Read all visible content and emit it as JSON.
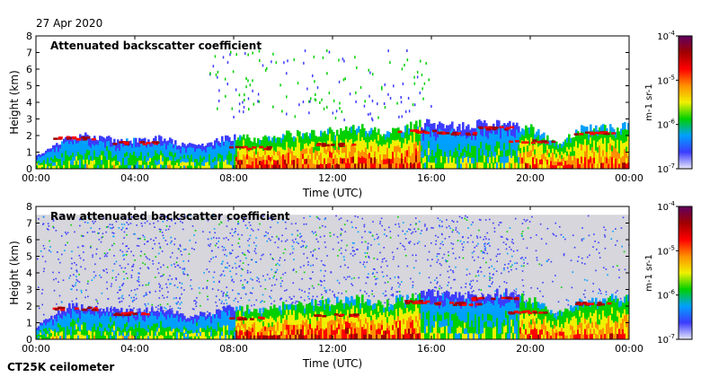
{
  "date": "27 Apr 2020",
  "instrument": "CT25K ceilometer",
  "colors": {
    "background_noise": "#d6d6dc",
    "colormap": [
      "#e8e8f8",
      "#3c3cff",
      "#00a0ff",
      "#00d000",
      "#f0f000",
      "#ff9000",
      "#ff0000",
      "#a00000",
      "#600060"
    ]
  },
  "chart_data": [
    {
      "type": "heatmap",
      "title": "Attenuated backscatter coefficient",
      "xlabel": "Time (UTC)",
      "ylabel": "Height (km)",
      "xlim": [
        0,
        24
      ],
      "ylim": [
        0,
        8
      ],
      "x_ticks": [
        "00:00",
        "04:00",
        "08:00",
        "12:00",
        "16:00",
        "20:00",
        "00:00"
      ],
      "y_ticks": [
        "0",
        "1",
        "2",
        "3",
        "4",
        "5",
        "6",
        "7",
        "8"
      ],
      "colorbar": {
        "label": "m-1 sr-1",
        "scale": "log",
        "range": [
          1e-07,
          0.0001
        ],
        "tick_base": "10",
        "tick_exponents": [
          "-7",
          "-6",
          "-5",
          "-4"
        ]
      },
      "layer_top_km": [
        [
          0,
          0.8
        ],
        [
          1.3,
          2.0
        ],
        [
          2,
          2.0
        ],
        [
          3,
          1.8
        ],
        [
          4,
          1.7
        ],
        [
          5,
          1.9
        ],
        [
          6,
          1.4
        ],
        [
          7,
          1.6
        ],
        [
          8,
          2.0
        ],
        [
          9,
          1.8
        ],
        [
          10,
          2.1
        ],
        [
          11,
          2.2
        ],
        [
          12,
          2.3
        ],
        [
          13,
          2.5
        ],
        [
          14,
          2.2
        ],
        [
          15,
          2.6
        ],
        [
          16,
          2.8
        ],
        [
          17,
          2.6
        ],
        [
          18,
          2.8
        ],
        [
          19,
          2.8
        ],
        [
          20,
          2.5
        ],
        [
          21,
          1.5
        ],
        [
          22,
          2.4
        ],
        [
          23,
          2.5
        ],
        [
          24,
          2.6
        ]
      ],
      "cloud_base_km": [
        [
          1.5,
          1.9
        ],
        [
          4,
          1.6
        ],
        [
          8.5,
          1.3
        ],
        [
          12,
          1.5
        ],
        [
          15.5,
          2.3
        ],
        [
          17,
          2.2
        ],
        [
          18.5,
          2.5
        ],
        [
          20,
          1.7
        ],
        [
          22.5,
          2.2
        ]
      ],
      "noise_ceiling_km": 0
    },
    {
      "type": "heatmap",
      "title": "Raw attenuated backscatter coefficient",
      "xlabel": "Time (UTC)",
      "ylabel": "Height (km)",
      "xlim": [
        0,
        24
      ],
      "ylim": [
        0,
        8
      ],
      "x_ticks": [
        "00:00",
        "04:00",
        "08:00",
        "12:00",
        "16:00",
        "20:00",
        "00:00"
      ],
      "y_ticks": [
        "0",
        "1",
        "2",
        "3",
        "4",
        "5",
        "6",
        "7",
        "8"
      ],
      "colorbar": {
        "label": "m-1 sr-1",
        "scale": "log",
        "range": [
          1e-07,
          0.0001
        ],
        "tick_base": "10",
        "tick_exponents": [
          "-7",
          "-6",
          "-5",
          "-4"
        ]
      },
      "layer_top_km": [
        [
          0,
          0.8
        ],
        [
          1.3,
          2.0
        ],
        [
          2,
          2.0
        ],
        [
          3,
          1.8
        ],
        [
          4,
          1.7
        ],
        [
          5,
          1.9
        ],
        [
          6,
          1.4
        ],
        [
          7,
          1.6
        ],
        [
          8,
          2.0
        ],
        [
          9,
          1.8
        ],
        [
          10,
          2.1
        ],
        [
          11,
          2.2
        ],
        [
          12,
          2.3
        ],
        [
          13,
          2.5
        ],
        [
          14,
          2.2
        ],
        [
          15,
          2.6
        ],
        [
          16,
          2.8
        ],
        [
          17,
          2.6
        ],
        [
          18,
          2.8
        ],
        [
          19,
          2.8
        ],
        [
          20,
          2.5
        ],
        [
          21,
          1.5
        ],
        [
          22,
          2.4
        ],
        [
          23,
          2.5
        ],
        [
          24,
          2.6
        ]
      ],
      "cloud_base_km": [
        [
          1.5,
          1.9
        ],
        [
          4,
          1.6
        ],
        [
          8.5,
          1.3
        ],
        [
          12,
          1.5
        ],
        [
          15.5,
          2.3
        ],
        [
          17,
          2.2
        ],
        [
          18.5,
          2.5
        ],
        [
          20,
          1.7
        ],
        [
          22.5,
          2.2
        ]
      ],
      "noise_ceiling_km": 7.5
    }
  ]
}
